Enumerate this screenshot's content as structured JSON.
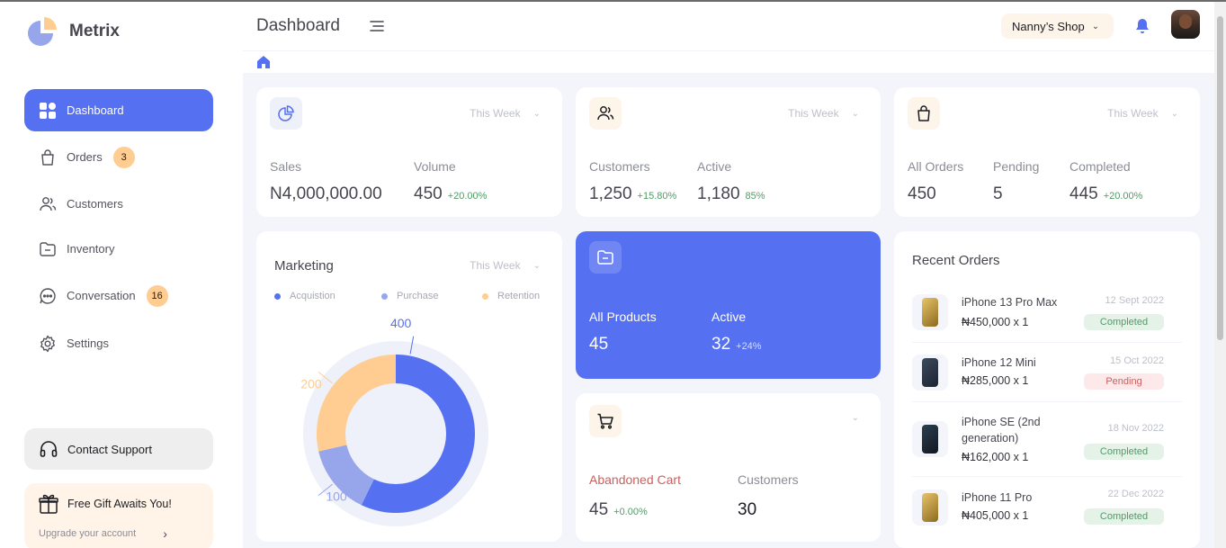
{
  "app": {
    "name": "Metrix"
  },
  "sidebar": {
    "items": [
      {
        "label": "Dashboard",
        "icon": "grid-icon",
        "active": true
      },
      {
        "label": "Orders",
        "icon": "bag-icon",
        "badge": "3"
      },
      {
        "label": "Customers",
        "icon": "users-icon"
      },
      {
        "label": "Inventory",
        "icon": "folder-icon"
      },
      {
        "label": "Conversation",
        "icon": "chat-icon",
        "badge": "16"
      },
      {
        "label": "Settings",
        "icon": "gear-icon"
      }
    ],
    "support_label": "Contact Support",
    "gift_title": "Free Gift Awaits You!",
    "gift_link": "Upgrade your account"
  },
  "header": {
    "title": "Dashboard",
    "shop": "Nanny’s Shop"
  },
  "sales_card": {
    "period": "This Week",
    "stat1_label": "Sales",
    "stat1_value": "N4,000,000.00",
    "stat2_label": "Volume",
    "stat2_value": "450",
    "stat2_change": "+20.00%"
  },
  "customers_card": {
    "period": "This Week",
    "stat1_label": "Customers",
    "stat1_value": "1,250",
    "stat1_change": "+15.80%",
    "stat2_label": "Active",
    "stat2_value": "1,180",
    "stat2_change": "85%"
  },
  "orders_card": {
    "period": "This Week",
    "stat1_label": "All Orders",
    "stat1_value": "450",
    "stat2_label": "Pending",
    "stat2_value": "5",
    "stat3_label": "Completed",
    "stat3_value": "445",
    "stat3_change": "+20.00%"
  },
  "marketing_card": {
    "title": "Marketing",
    "period": "This Week",
    "legend": [
      "Acquistion",
      "Purchase",
      "Retention"
    ],
    "colors": {
      "acquisition": "#5570f1",
      "purchase": "#97a5eb",
      "retention": "#ffcc91",
      "track": "#eef0fa"
    }
  },
  "chart_data": {
    "type": "pie",
    "categories": [
      "Acquistion",
      "Purchase",
      "Retention"
    ],
    "values": [
      400,
      100,
      200
    ],
    "data_labels": [
      "400",
      "100",
      "200"
    ]
  },
  "products_card": {
    "stat1_label": "All Products",
    "stat1_value": "45",
    "stat2_label": "Active",
    "stat2_value": "32",
    "stat2_change": "+24%"
  },
  "cart_card": {
    "stat1_label": "Abandoned Cart",
    "stat1_value": "45",
    "stat1_change": "+0.00%",
    "stat2_label": "Customers",
    "stat2_value": "30"
  },
  "recent_orders": {
    "title": "Recent Orders",
    "items": [
      {
        "name": "iPhone 13 Pro Max",
        "price": "₦450,000 x 1",
        "date": "12 Sept 2022",
        "status": "Completed"
      },
      {
        "name": "iPhone 12 Mini",
        "price": "₦285,000 x 1",
        "date": "15 Oct 2022",
        "status": "Pending"
      },
      {
        "name": "iPhone SE (2nd generation)",
        "price": "₦162,000 x 1",
        "date": "18 Nov 2022",
        "status": "Completed"
      },
      {
        "name": "iPhone 11 Pro",
        "price": "₦405,000 x 1",
        "date": "22 Dec 2022",
        "status": "Completed"
      }
    ]
  }
}
